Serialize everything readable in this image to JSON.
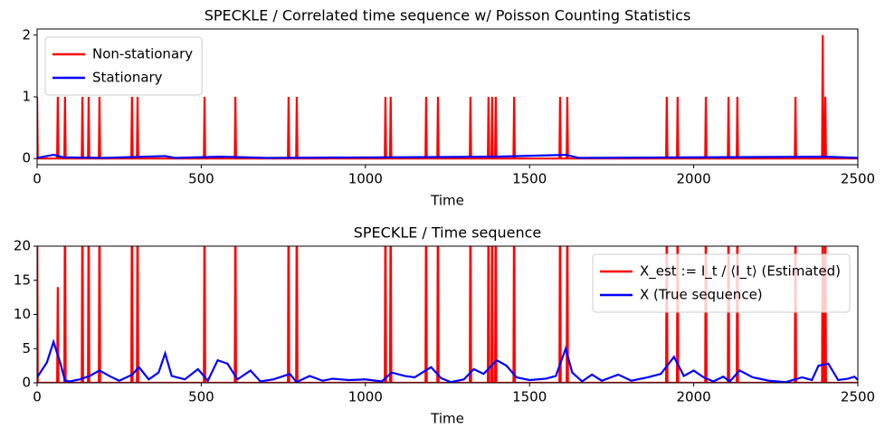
{
  "chart_data": [
    {
      "type": "line",
      "title": "SPECKLE / Correlated time sequence w/ Poisson Counting Statistics",
      "x_label": "Time",
      "xlim": [
        0,
        2500
      ],
      "xticks": [
        0,
        500,
        1000,
        1500,
        2000,
        2500
      ],
      "ylim": [
        -0.1,
        2.1
      ],
      "yticks": [
        0,
        1,
        2
      ],
      "legend": "upper left",
      "series": [
        {
          "name": "Non-stationary",
          "color": "#ff0000",
          "x": [
            0,
            2,
            61,
            63,
            65,
            83,
            85,
            87,
            136,
            138,
            140,
            155,
            157,
            159,
            188,
            190,
            192,
            287,
            289,
            291,
            304,
            306,
            308,
            508,
            510,
            512,
            602,
            604,
            606,
            764,
            766,
            768,
            789,
            791,
            793,
            1059,
            1061,
            1063,
            1075,
            1077,
            1079,
            1183,
            1185,
            1187,
            1219,
            1221,
            1223,
            1318,
            1320,
            1322,
            1373,
            1375,
            1377,
            1384,
            1386,
            1388,
            1395,
            1397,
            1399,
            1451,
            1453,
            1455,
            1591,
            1593,
            1595,
            1613,
            1615,
            1617,
            1916,
            1918,
            1920,
            1949,
            1951,
            1953,
            2035,
            2037,
            2039,
            2104,
            2106,
            2108,
            2131,
            2133,
            2135,
            2308,
            2310,
            2312,
            2391,
            2393,
            2395,
            2399,
            2401,
            2403,
            2500
          ],
          "values": [
            1,
            0,
            0,
            1,
            0,
            0,
            1,
            0,
            0,
            1,
            0,
            0,
            1,
            0,
            0,
            1,
            0,
            0,
            1,
            0,
            0,
            1,
            0,
            0,
            1,
            0,
            0,
            1,
            0,
            0,
            1,
            0,
            0,
            1,
            0,
            0,
            1,
            0,
            0,
            1,
            0,
            0,
            1,
            0,
            0,
            1,
            0,
            0,
            1,
            0,
            0,
            1,
            0,
            0,
            1,
            0,
            0,
            1,
            0,
            0,
            1,
            0,
            0,
            1,
            0,
            0,
            1,
            0,
            0,
            1,
            0,
            0,
            1,
            0,
            0,
            1,
            0,
            0,
            1,
            0,
            0,
            1,
            0,
            0,
            1,
            0,
            0,
            2,
            0,
            0,
            1,
            0,
            0
          ]
        },
        {
          "name": "Stationary",
          "color": "#0000ff",
          "x": [
            0,
            50,
            80,
            200,
            390,
            420,
            560,
            700,
            1400,
            1610,
            1650,
            2400,
            2500
          ],
          "values": [
            0.01,
            0.06,
            0.02,
            0.01,
            0.04,
            0.01,
            0.03,
            0.01,
            0.03,
            0.06,
            0.01,
            0.03,
            0.01
          ]
        }
      ]
    },
    {
      "type": "line",
      "title": "SPECKLE / Time sequence",
      "x_label": "Time",
      "xlim": [
        0,
        2500
      ],
      "xticks": [
        0,
        500,
        1000,
        1500,
        2000,
        2500
      ],
      "ylim": [
        0,
        20
      ],
      "yticks": [
        0,
        5,
        10,
        15,
        20
      ],
      "legend": "upper right",
      "series": [
        {
          "name": "X_est := I_t / ⟨I_t⟩ (Estimated)",
          "color": "#ff0000",
          "x": [
            0,
            2,
            61,
            63,
            65,
            83,
            85,
            87,
            136,
            138,
            140,
            155,
            157,
            159,
            188,
            190,
            192,
            287,
            289,
            291,
            304,
            306,
            308,
            508,
            510,
            512,
            602,
            604,
            606,
            764,
            766,
            768,
            789,
            791,
            793,
            1059,
            1061,
            1063,
            1075,
            1077,
            1079,
            1183,
            1185,
            1187,
            1219,
            1221,
            1223,
            1318,
            1320,
            1322,
            1373,
            1375,
            1377,
            1384,
            1386,
            1388,
            1395,
            1397,
            1399,
            1451,
            1453,
            1455,
            1591,
            1593,
            1595,
            1613,
            1615,
            1617,
            1916,
            1918,
            1920,
            1949,
            1951,
            1953,
            2035,
            2037,
            2039,
            2104,
            2106,
            2108,
            2131,
            2133,
            2135,
            2308,
            2310,
            2312,
            2391,
            2393,
            2395,
            2399,
            2401,
            2403,
            2500
          ],
          "values": [
            30,
            0,
            0,
            14,
            0,
            0,
            30,
            0,
            0,
            30,
            0,
            0,
            30,
            0,
            0,
            30,
            0,
            0,
            30,
            0,
            0,
            30,
            0,
            0,
            30,
            0,
            0,
            30,
            0,
            0,
            30,
            0,
            0,
            30,
            0,
            0,
            30,
            0,
            0,
            30,
            0,
            0,
            30,
            0,
            0,
            30,
            0,
            0,
            30,
            0,
            0,
            30,
            0,
            0,
            30,
            0,
            0,
            30,
            0,
            0,
            30,
            0,
            0,
            30,
            0,
            0,
            30,
            0,
            0,
            30,
            0,
            0,
            30,
            0,
            0,
            30,
            0,
            0,
            30,
            0,
            0,
            30,
            0,
            0,
            30,
            0,
            0,
            30,
            0,
            0,
            30,
            0,
            0
          ]
        },
        {
          "name": "X (True sequence)",
          "color": "#0000ff",
          "x": [
            0,
            30,
            50,
            70,
            85,
            100,
            130,
            160,
            190,
            220,
            250,
            290,
            310,
            340,
            370,
            390,
            410,
            450,
            490,
            520,
            550,
            580,
            610,
            650,
            680,
            720,
            770,
            790,
            830,
            870,
            900,
            950,
            1000,
            1050,
            1080,
            1120,
            1150,
            1200,
            1230,
            1260,
            1300,
            1330,
            1360,
            1400,
            1430,
            1460,
            1500,
            1550,
            1580,
            1610,
            1630,
            1660,
            1690,
            1720,
            1770,
            1810,
            1860,
            1900,
            1940,
            1970,
            2000,
            2030,
            2060,
            2090,
            2110,
            2140,
            2180,
            2230,
            2280,
            2330,
            2360,
            2380,
            2410,
            2440,
            2470,
            2490,
            2500
          ],
          "values": [
            0.8,
            3,
            6,
            3,
            0.3,
            0.2,
            0.5,
            1,
            1.8,
            1,
            0.3,
            1.2,
            2.3,
            0.5,
            1.5,
            4.3,
            1,
            0.5,
            2,
            0.3,
            3.3,
            2.8,
            0.5,
            1.8,
            0.2,
            0.5,
            1.3,
            0.1,
            1,
            0.3,
            0.6,
            0.4,
            0.5,
            0.2,
            1.5,
            1,
            0.8,
            2.3,
            0.7,
            0.1,
            0.5,
            2,
            1.3,
            3.3,
            2.5,
            0.8,
            0.4,
            0.6,
            1,
            5,
            1.5,
            0.2,
            1.2,
            0.3,
            1.2,
            0.3,
            0.8,
            1.3,
            3.8,
            1,
            1.8,
            0.8,
            0.2,
            0.9,
            0.2,
            1.8,
            0.8,
            0.3,
            0.1,
            0.8,
            0.4,
            2.5,
            2.8,
            0.4,
            0.6,
            0.9,
            0.4
          ]
        }
      ]
    }
  ]
}
